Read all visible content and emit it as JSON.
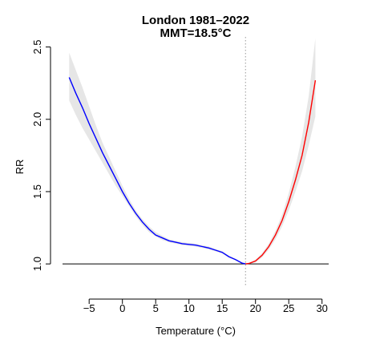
{
  "chart_data": {
    "type": "line",
    "title": "London 1981–2022",
    "subtitle": "MMT=18.5°C",
    "xlabel": "Temperature (°C)",
    "ylabel": "RR",
    "xlim": [
      -9,
      31
    ],
    "ylim": [
      0.84,
      2.57
    ],
    "x_ticks": [
      -5,
      0,
      5,
      10,
      15,
      20,
      25,
      30
    ],
    "x_tick_labels": [
      "−5",
      "0",
      "5",
      "10",
      "15",
      "20",
      "25",
      "30"
    ],
    "y_ticks": [
      1.0,
      1.5,
      2.0,
      2.5
    ],
    "y_tick_labels": [
      "1.0",
      "1.5",
      "2.0",
      "2.5"
    ],
    "reference_line": {
      "y": 1.0
    },
    "mmt_line": {
      "x": 18.5
    },
    "grid": false,
    "colors": {
      "cold": "#0000ff",
      "heat": "#ff0000",
      "ci": "#e6e6e6",
      "reference": "#000000",
      "mmt": "#999999"
    },
    "series": [
      {
        "color_key": "cold",
        "x": [
          -8,
          -7,
          -6,
          -5,
          -4,
          -3,
          -2,
          -1,
          0,
          1,
          2,
          3,
          4,
          5,
          6,
          7,
          8,
          9,
          10,
          11,
          12,
          13,
          14,
          15,
          16,
          17,
          18,
          18.5
        ],
        "y": [
          2.29,
          2.18,
          2.08,
          1.97,
          1.87,
          1.77,
          1.68,
          1.59,
          1.5,
          1.42,
          1.35,
          1.29,
          1.24,
          1.2,
          1.18,
          1.16,
          1.15,
          1.14,
          1.135,
          1.13,
          1.12,
          1.11,
          1.095,
          1.08,
          1.05,
          1.03,
          1.005,
          1.0
        ],
        "ci_lower": [
          2.13,
          2.03,
          1.94,
          1.86,
          1.78,
          1.7,
          1.62,
          1.54,
          1.47,
          1.4,
          1.33,
          1.27,
          1.22,
          1.19,
          1.165,
          1.15,
          1.14,
          1.13,
          1.125,
          1.12,
          1.11,
          1.1,
          1.087,
          1.072,
          1.043,
          1.025,
          1.003,
          1.0
        ],
        "ci_upper": [
          2.46,
          2.34,
          2.22,
          2.09,
          1.96,
          1.84,
          1.74,
          1.64,
          1.54,
          1.45,
          1.37,
          1.31,
          1.26,
          1.22,
          1.195,
          1.17,
          1.16,
          1.15,
          1.145,
          1.14,
          1.13,
          1.12,
          1.103,
          1.088,
          1.057,
          1.035,
          1.007,
          1.0
        ]
      },
      {
        "color_key": "heat",
        "x": [
          18.5,
          19,
          20,
          21,
          22,
          23,
          24,
          25,
          26,
          27,
          28,
          29
        ],
        "y": [
          1.0,
          1.003,
          1.02,
          1.06,
          1.12,
          1.2,
          1.3,
          1.43,
          1.58,
          1.75,
          1.98,
          2.27
        ],
        "ci_lower": [
          1.0,
          1.001,
          1.01,
          1.045,
          1.1,
          1.17,
          1.26,
          1.37,
          1.5,
          1.64,
          1.82,
          2.02
        ],
        "ci_upper": [
          1.0,
          1.005,
          1.03,
          1.075,
          1.14,
          1.23,
          1.34,
          1.49,
          1.67,
          1.88,
          2.16,
          2.56
        ]
      }
    ]
  }
}
